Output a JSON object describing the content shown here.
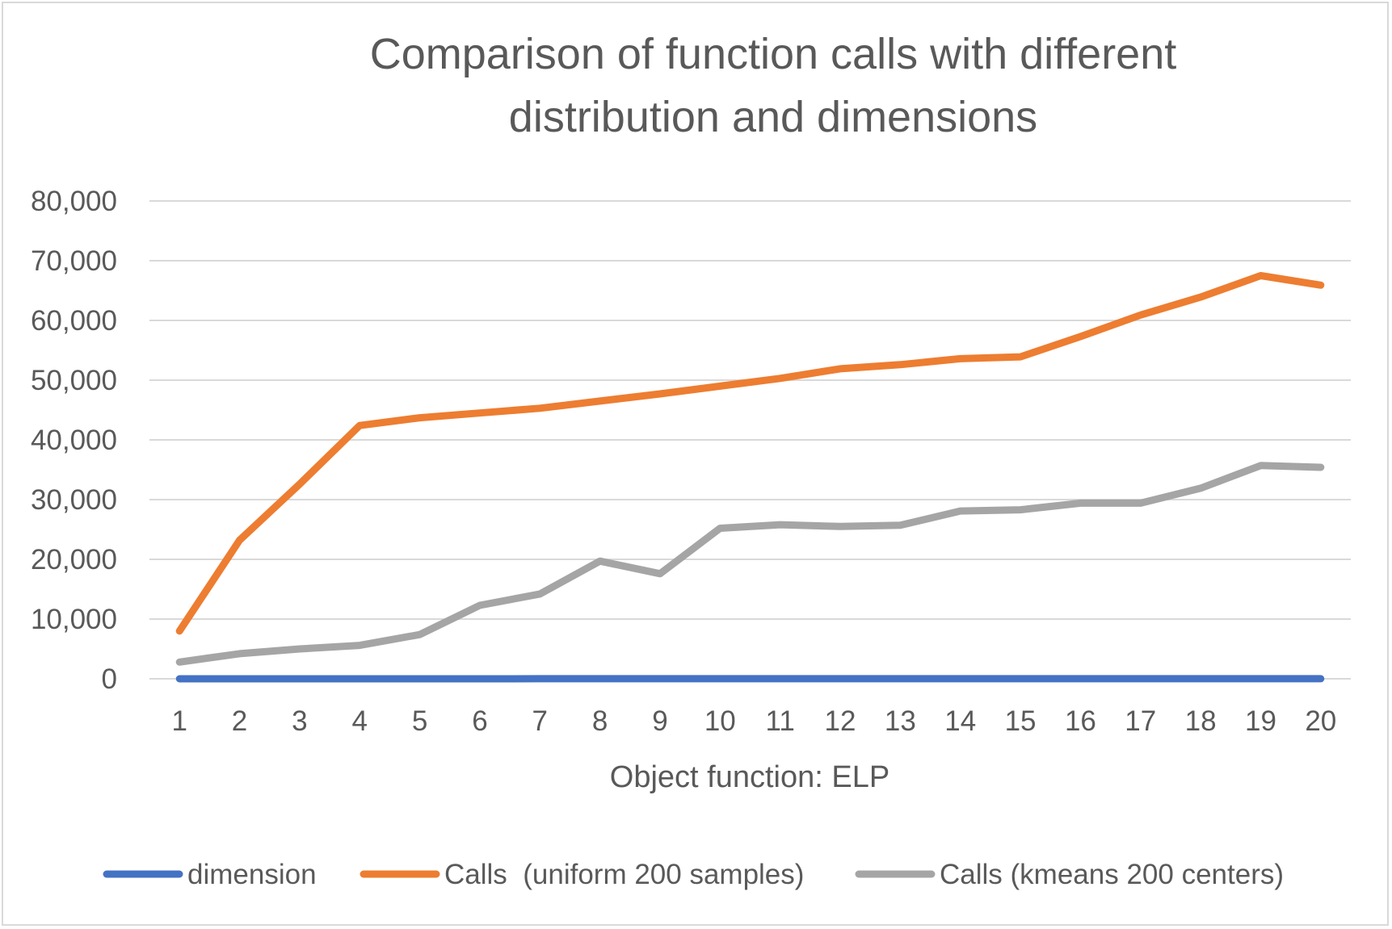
{
  "chart_data": {
    "type": "line",
    "title": "Comparison of function calls with different distribution and dimensions",
    "title_lines": [
      "Comparison of function calls with different",
      "distribution and dimensions"
    ],
    "xlabel": "Object function: ELP",
    "ylabel": "",
    "categories": [
      "1",
      "2",
      "3",
      "4",
      "5",
      "6",
      "7",
      "8",
      "9",
      "10",
      "11",
      "12",
      "13",
      "14",
      "15",
      "16",
      "17",
      "18",
      "19",
      "20"
    ],
    "ylim": [
      0,
      80000
    ],
    "yticks": [
      0,
      10000,
      20000,
      30000,
      40000,
      50000,
      60000,
      70000,
      80000
    ],
    "ytick_labels": [
      "0",
      "10,000",
      "20,000",
      "30,000",
      "40,000",
      "50,000",
      "60,000",
      "70,000",
      "80,000"
    ],
    "grid": true,
    "legend_position": "bottom",
    "series": [
      {
        "name": "dimension",
        "color": "#4472c4",
        "values": [
          1,
          2,
          3,
          4,
          5,
          6,
          7,
          8,
          9,
          10,
          11,
          12,
          13,
          14,
          15,
          16,
          17,
          18,
          19,
          20
        ]
      },
      {
        "name": "Calls  (uniform 200 samples)",
        "color": "#ed7d31",
        "values": [
          8000,
          23200,
          32600,
          42400,
          43700,
          44500,
          45300,
          46500,
          47700,
          49000,
          50300,
          51900,
          52600,
          53600,
          53900,
          57300,
          60900,
          63900,
          67500,
          65900
        ]
      },
      {
        "name": "Calls (kmeans 200 centers)",
        "color": "#a5a5a5",
        "values": [
          2800,
          4200,
          5000,
          5600,
          7400,
          12300,
          14200,
          19700,
          17600,
          25200,
          25800,
          25500,
          25700,
          28100,
          28300,
          29400,
          29400,
          31900,
          35700,
          35400
        ]
      }
    ]
  }
}
